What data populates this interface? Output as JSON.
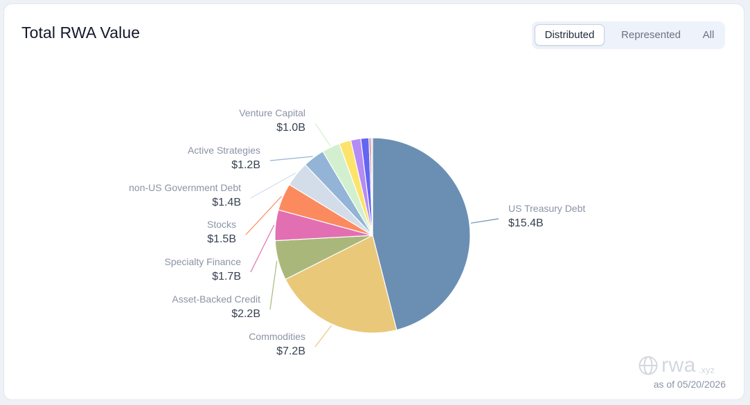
{
  "header": {
    "title": "Total RWA Value"
  },
  "toggle": {
    "options": [
      "Distributed",
      "Represented",
      "All"
    ],
    "selected": "Distributed"
  },
  "footer": {
    "watermark": "rwa",
    "watermark_sub": ".xyz",
    "as_of": "as of 05/20/2026"
  },
  "chart_data": {
    "type": "pie",
    "title": "Total RWA Value",
    "unit": "USD billions",
    "slices": [
      {
        "name": "US Treasury Debt",
        "value": 15.4,
        "label": "$15.4B",
        "color": "#6b8fb3",
        "labeled": true
      },
      {
        "name": "Commodities",
        "value": 7.2,
        "label": "$7.2B",
        "color": "#e9c87a",
        "labeled": true
      },
      {
        "name": "Asset-Backed Credit",
        "value": 2.2,
        "label": "$2.2B",
        "color": "#a9b87a",
        "labeled": true
      },
      {
        "name": "Specialty Finance",
        "value": 1.7,
        "label": "$1.7B",
        "color": "#e26fb2",
        "labeled": true
      },
      {
        "name": "Stocks",
        "value": 1.5,
        "label": "$1.5B",
        "color": "#fb8a5e",
        "labeled": true
      },
      {
        "name": "non-US Government Debt",
        "value": 1.4,
        "label": "$1.4B",
        "color": "#d3dde9",
        "labeled": true
      },
      {
        "name": "Active Strategies",
        "value": 1.2,
        "label": "$1.2B",
        "color": "#93b4d6",
        "labeled": true
      },
      {
        "name": "Venture Capital",
        "value": 1.0,
        "label": "$1.0B",
        "color": "#d2f0cf",
        "labeled": true
      },
      {
        "name": "",
        "value": 0.65,
        "label": "",
        "color": "#fde36a",
        "labeled": false
      },
      {
        "name": "",
        "value": 0.55,
        "label": "",
        "color": "#b58cf5",
        "labeled": false
      },
      {
        "name": "",
        "value": 0.45,
        "label": "",
        "color": "#6366f1",
        "labeled": false
      },
      {
        "name": "",
        "value": 0.12,
        "label": "",
        "color": "#d08a8a",
        "labeled": false
      },
      {
        "name": "",
        "value": 0.08,
        "label": "",
        "color": "#c4cbd6",
        "labeled": false
      }
    ]
  }
}
